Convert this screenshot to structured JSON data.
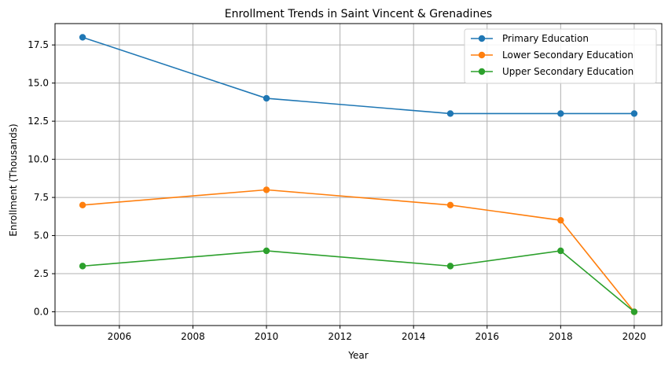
{
  "chart_data": {
    "type": "line",
    "title": "Enrollment Trends in Saint Vincent & Grenadines",
    "xlabel": "Year",
    "ylabel": "Enrollment (Thousands)",
    "x": [
      2005,
      2010,
      2015,
      2018,
      2020
    ],
    "xlim": [
      2004.25,
      2020.75
    ],
    "ylim": [
      -0.9,
      18.9
    ],
    "xticks": [
      2006,
      2008,
      2010,
      2012,
      2014,
      2016,
      2018,
      2020
    ],
    "yticks": [
      0.0,
      2.5,
      5.0,
      7.5,
      10.0,
      12.5,
      15.0,
      17.5
    ],
    "ytick_labels": [
      "0.0",
      "2.5",
      "5.0",
      "7.5",
      "10.0",
      "12.5",
      "15.0",
      "17.5"
    ],
    "grid": true,
    "legend_position": "top-right",
    "series": [
      {
        "name": "Primary Education",
        "color": "#1f77b4",
        "values": [
          18,
          14,
          13,
          13,
          13
        ]
      },
      {
        "name": "Lower Secondary Education",
        "color": "#ff7f0e",
        "values": [
          7,
          8,
          7,
          6,
          0
        ]
      },
      {
        "name": "Upper Secondary Education",
        "color": "#2ca02c",
        "values": [
          3,
          4,
          3,
          4,
          0
        ]
      }
    ]
  }
}
